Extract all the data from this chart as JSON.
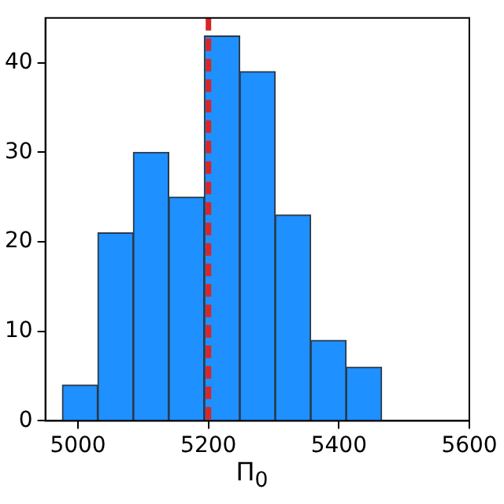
{
  "chart_data": {
    "type": "histogram",
    "xlabel": "Π$_{0}$",
    "bins": [
      4976,
      5030.4,
      5084.8,
      5139.2,
      5193.6,
      5248,
      5302.4,
      5356.8,
      5411.2,
      5465.6
    ],
    "values": [
      4,
      21,
      30,
      25,
      43,
      39,
      23,
      9,
      6
    ],
    "color": "#1e90ff",
    "xlim": [
      4950,
      5600
    ],
    "xticks": [
      5000,
      5200,
      5400,
      5600
    ],
    "ylim": [
      0,
      45
    ],
    "yticks": [
      0,
      10,
      20,
      30,
      40
    ],
    "ref_lines": [
      {
        "axis": "x",
        "value": 5200,
        "color": "#d62728",
        "line_style": "dashed"
      }
    ],
    "grid": false,
    "legend": false
  }
}
